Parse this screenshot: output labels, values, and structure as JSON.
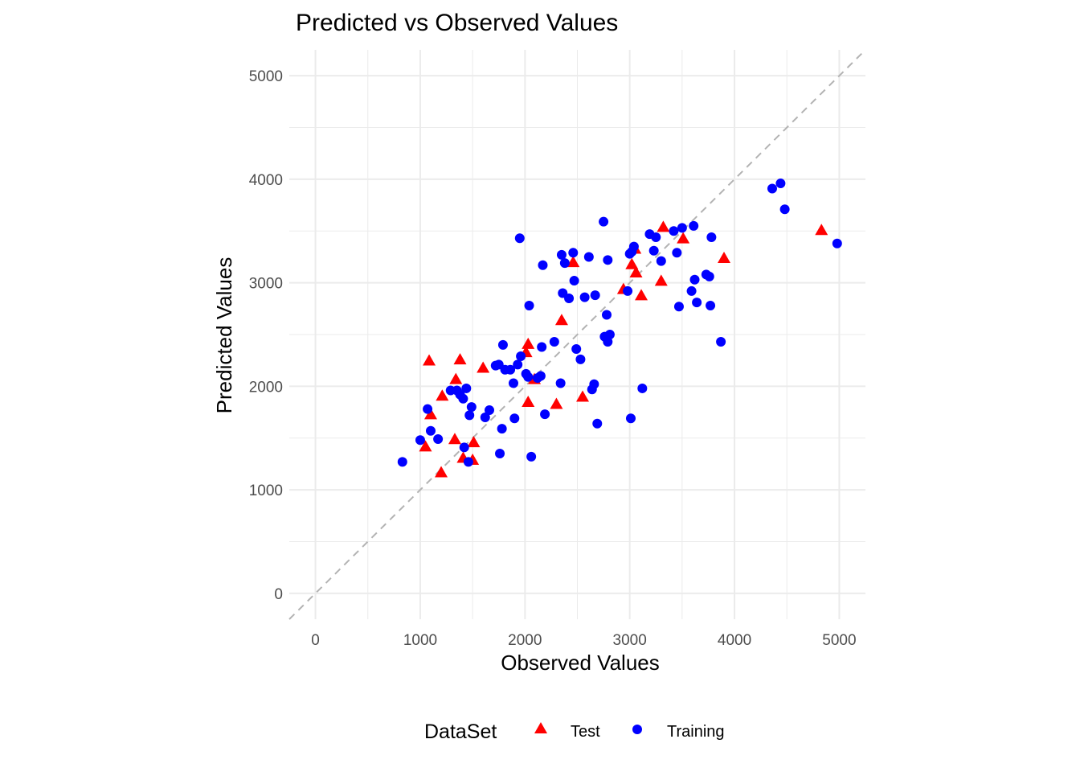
{
  "chart_data": {
    "type": "scatter",
    "title": "Predicted vs Observed Values",
    "xlabel": "Observed Values",
    "ylabel": "Predicted Values",
    "xlim": [
      -250,
      5250
    ],
    "ylim": [
      -250,
      5250
    ],
    "x_ticks": [
      0,
      1000,
      2000,
      3000,
      4000,
      5000
    ],
    "y_ticks": [
      0,
      1000,
      2000,
      3000,
      4000,
      5000
    ],
    "x_tick_labels": [
      "0",
      "1000",
      "2000",
      "3000",
      "4000",
      "5000"
    ],
    "y_tick_labels": [
      "0",
      "1000",
      "2000",
      "3000",
      "4000",
      "5000"
    ],
    "grid": true,
    "reference_line": {
      "slope": 1,
      "intercept": 0,
      "style": "dashed",
      "color": "#b3b3b3"
    },
    "legend": {
      "title": "DataSet",
      "position": "bottom"
    },
    "series": [
      {
        "name": "Test",
        "color": "#ff0000",
        "marker": "triangle",
        "points": [
          [
            1050,
            1410
          ],
          [
            1085,
            2240
          ],
          [
            1100,
            1720
          ],
          [
            1200,
            1160
          ],
          [
            1210,
            1900
          ],
          [
            1330,
            1480
          ],
          [
            1340,
            2060
          ],
          [
            1380,
            2250
          ],
          [
            1410,
            1300
          ],
          [
            1500,
            1280
          ],
          [
            1510,
            1450
          ],
          [
            1600,
            2170
          ],
          [
            2010,
            2320
          ],
          [
            2030,
            2400
          ],
          [
            2030,
            1840
          ],
          [
            2090,
            2060
          ],
          [
            2300,
            1820
          ],
          [
            2350,
            2630
          ],
          [
            2460,
            3190
          ],
          [
            2550,
            1890
          ],
          [
            2940,
            2930
          ],
          [
            3020,
            3170
          ],
          [
            3050,
            3320
          ],
          [
            3060,
            3090
          ],
          [
            3110,
            2870
          ],
          [
            3300,
            3010
          ],
          [
            3320,
            3530
          ],
          [
            3510,
            3420
          ],
          [
            3900,
            3230
          ],
          [
            4830,
            3500
          ]
        ]
      },
      {
        "name": "Training",
        "color": "#0000ff",
        "marker": "circle",
        "points": [
          [
            830,
            1270
          ],
          [
            1000,
            1480
          ],
          [
            1070,
            1780
          ],
          [
            1100,
            1570
          ],
          [
            1170,
            1490
          ],
          [
            1290,
            1960
          ],
          [
            1350,
            1960
          ],
          [
            1380,
            1920
          ],
          [
            1410,
            1880
          ],
          [
            1420,
            1410
          ],
          [
            1440,
            1980
          ],
          [
            1460,
            1270
          ],
          [
            1470,
            1720
          ],
          [
            1490,
            1800
          ],
          [
            1620,
            1700
          ],
          [
            1660,
            1770
          ],
          [
            1720,
            2200
          ],
          [
            1750,
            2210
          ],
          [
            1760,
            1350
          ],
          [
            1780,
            1590
          ],
          [
            1790,
            2400
          ],
          [
            1810,
            2160
          ],
          [
            1860,
            2160
          ],
          [
            1890,
            2030
          ],
          [
            1900,
            1690
          ],
          [
            1930,
            2210
          ],
          [
            1950,
            3430
          ],
          [
            1960,
            2290
          ],
          [
            2010,
            2120
          ],
          [
            2030,
            2090
          ],
          [
            2040,
            2780
          ],
          [
            2060,
            1320
          ],
          [
            2120,
            2080
          ],
          [
            2150,
            2100
          ],
          [
            2160,
            2380
          ],
          [
            2170,
            3170
          ],
          [
            2190,
            1730
          ],
          [
            2280,
            2430
          ],
          [
            2340,
            2030
          ],
          [
            2350,
            3270
          ],
          [
            2360,
            2900
          ],
          [
            2380,
            3190
          ],
          [
            2420,
            2850
          ],
          [
            2460,
            3290
          ],
          [
            2470,
            3020
          ],
          [
            2490,
            2360
          ],
          [
            2530,
            2260
          ],
          [
            2570,
            2860
          ],
          [
            2610,
            3250
          ],
          [
            2640,
            1970
          ],
          [
            2660,
            2020
          ],
          [
            2670,
            2880
          ],
          [
            2690,
            1640
          ],
          [
            2750,
            3590
          ],
          [
            2760,
            2480
          ],
          [
            2780,
            2690
          ],
          [
            2790,
            2430
          ],
          [
            2790,
            3220
          ],
          [
            2810,
            2500
          ],
          [
            2980,
            2920
          ],
          [
            3000,
            3280
          ],
          [
            3010,
            1690
          ],
          [
            3020,
            3300
          ],
          [
            3040,
            3350
          ],
          [
            3120,
            1980
          ],
          [
            3190,
            3470
          ],
          [
            3230,
            3310
          ],
          [
            3250,
            3440
          ],
          [
            3300,
            3210
          ],
          [
            3420,
            3500
          ],
          [
            3450,
            3290
          ],
          [
            3470,
            2770
          ],
          [
            3500,
            3530
          ],
          [
            3590,
            2920
          ],
          [
            3610,
            3550
          ],
          [
            3620,
            3030
          ],
          [
            3640,
            2810
          ],
          [
            3730,
            3080
          ],
          [
            3760,
            3060
          ],
          [
            3770,
            2780
          ],
          [
            3780,
            3440
          ],
          [
            3870,
            2430
          ],
          [
            4360,
            3910
          ],
          [
            4440,
            3960
          ],
          [
            4480,
            3710
          ],
          [
            4980,
            3380
          ]
        ]
      }
    ]
  }
}
